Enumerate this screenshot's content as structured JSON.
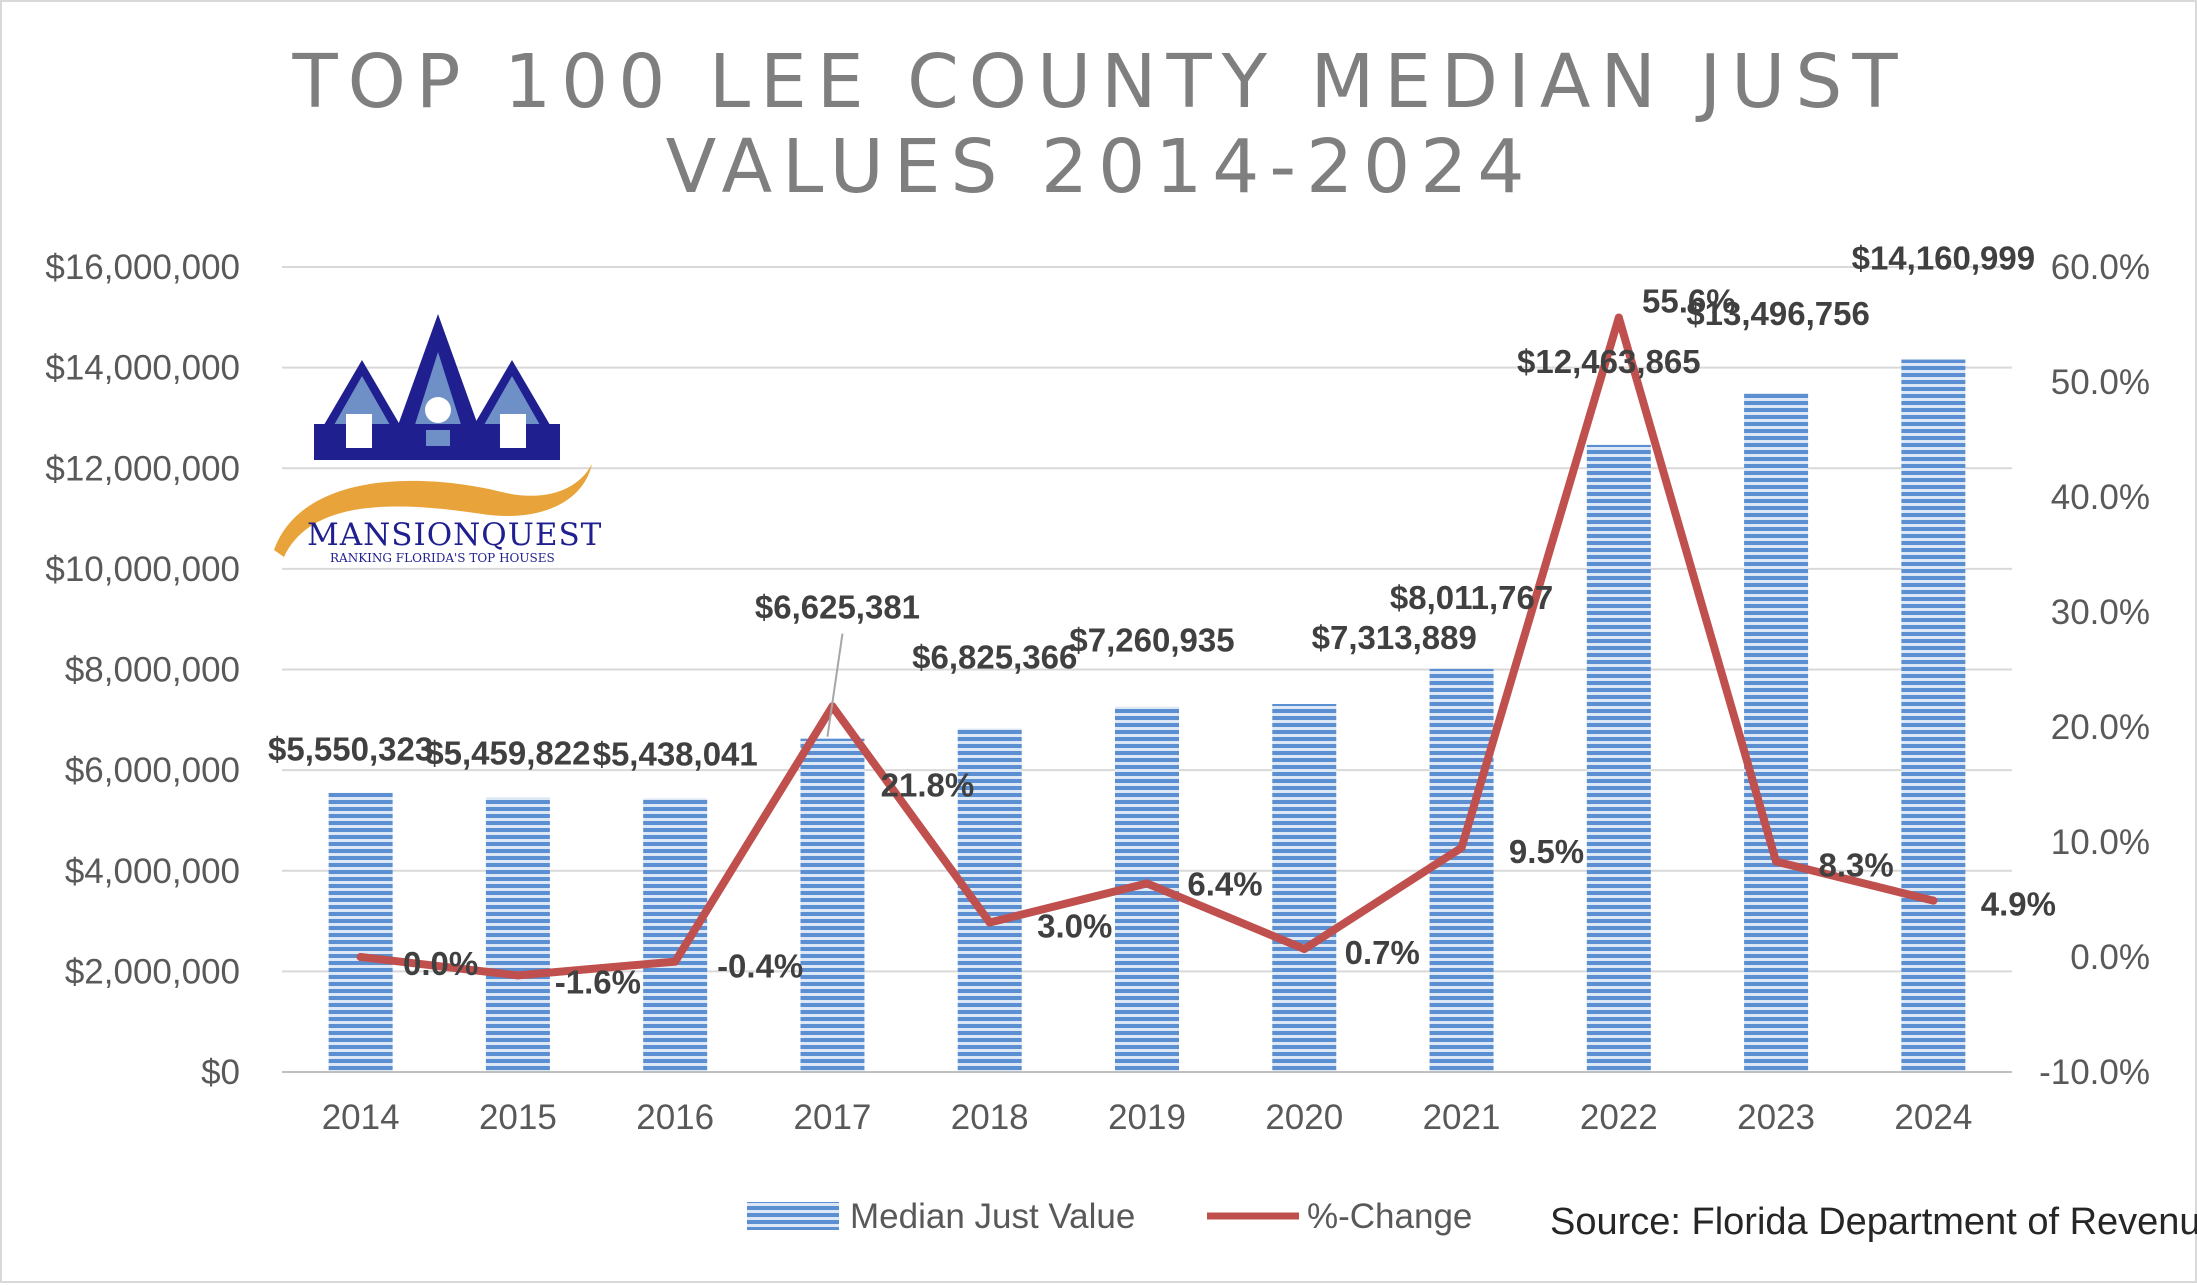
{
  "chart_data": {
    "type": "bar",
    "title_lines": [
      "TOP 100 LEE COUNTY MEDIAN JUST",
      "VALUES 2014-2024"
    ],
    "categories": [
      "2014",
      "2015",
      "2016",
      "2017",
      "2018",
      "2019",
      "2020",
      "2021",
      "2022",
      "2023",
      "2024"
    ],
    "series": [
      {
        "name": "Median Just Value",
        "type": "bar",
        "axis": "left",
        "color": "#6f9fd8",
        "values": [
          5550323,
          5459822,
          5438041,
          6625381,
          6825366,
          7260935,
          7313889,
          8011767,
          12463865,
          13496756,
          14160999
        ],
        "labels": [
          "$5,550,323",
          "$5,459,822",
          "$5,438,041",
          "$6,625,381",
          "$6,825,366",
          "$7,260,935",
          "$7,313,889",
          "$8,011,767",
          "$12,463,865",
          "$13,496,756",
          "$14,160,999"
        ]
      },
      {
        "name": "%-Change",
        "type": "line",
        "axis": "right",
        "color": "#c0504d",
        "values": [
          0.0,
          -1.6,
          -0.4,
          21.8,
          3.0,
          6.4,
          0.7,
          9.5,
          55.6,
          8.3,
          4.9
        ],
        "labels": [
          "0.0%",
          "-1.6%",
          "-0.4%",
          "21.8%",
          "3.0%",
          "6.4%",
          "0.7%",
          "9.5%",
          "55.6%",
          "8.3%",
          "4.9%"
        ]
      }
    ],
    "y_left": {
      "ylim": [
        0,
        16000000
      ],
      "ticks": [
        "$0",
        "$2,000,000",
        "$4,000,000",
        "$6,000,000",
        "$8,000,000",
        "$10,000,000",
        "$12,000,000",
        "$14,000,000",
        "$16,000,000"
      ]
    },
    "y_right": {
      "ylim": [
        -10,
        60
      ],
      "ticks": [
        "-10.0%",
        "0.0%",
        "10.0%",
        "20.0%",
        "30.0%",
        "40.0%",
        "50.0%",
        "60.0%"
      ]
    },
    "grid": true,
    "legend_position": "bottom",
    "source": "Source: Florida Department of Revenue"
  },
  "logo": {
    "name": "MANSIONQUEST",
    "tagline": "RANKING FLORIDA'S TOP HOUSES",
    "colors": {
      "navy": "#1f1f8f",
      "blue": "#6f8fc7",
      "orange": "#e8a43a"
    }
  }
}
